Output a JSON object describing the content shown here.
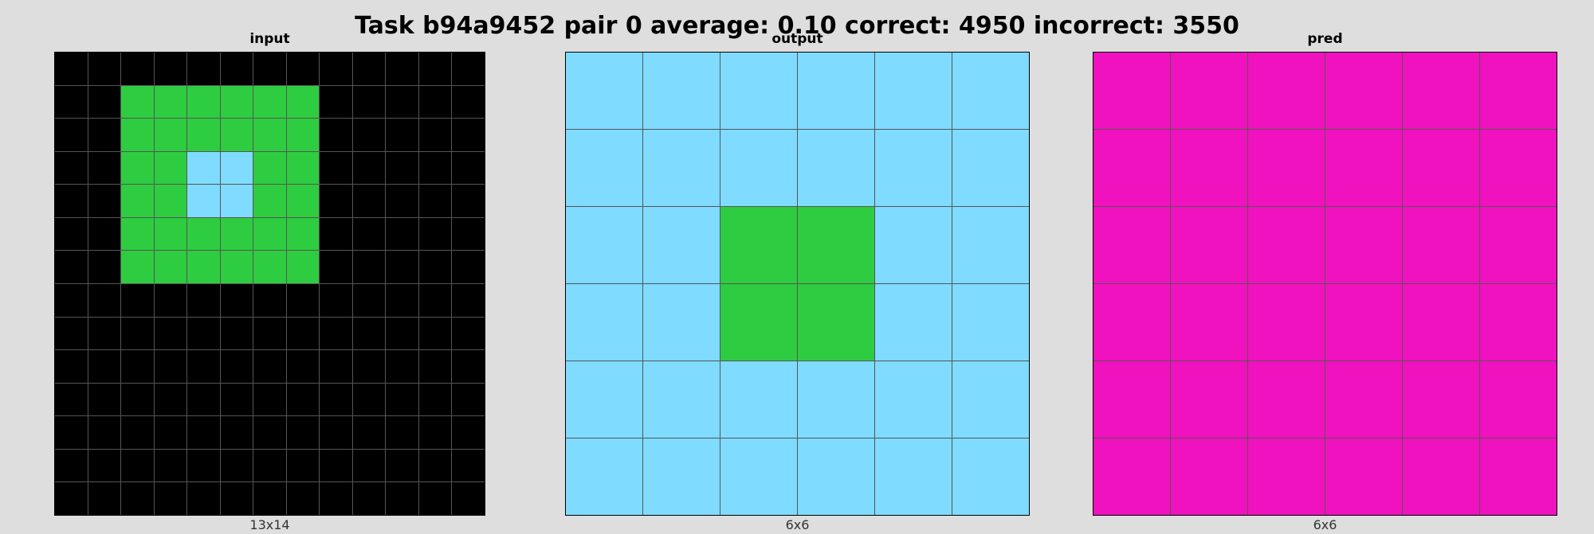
{
  "title": "Task b94a9452 pair 0 average: 0.10 correct: 4950 incorrect: 3550",
  "palette": {
    "0": "#000000",
    "1": "#1E93FF",
    "2": "#F93C31",
    "3": "#2ECC40",
    "4": "#FFDC00",
    "5": "#999999",
    "6": "#F012BE",
    "7": "#FF851B",
    "8": "#7FDBFF",
    "9": "#870C25"
  },
  "grid_line_color": "#555555",
  "panels": [
    {
      "label": "input",
      "dims": "13x14",
      "rows": 14,
      "cols": 13,
      "cells": [
        [
          0,
          0,
          0,
          0,
          0,
          0,
          0,
          0,
          0,
          0,
          0,
          0,
          0
        ],
        [
          0,
          0,
          3,
          3,
          3,
          3,
          3,
          3,
          0,
          0,
          0,
          0,
          0
        ],
        [
          0,
          0,
          3,
          3,
          3,
          3,
          3,
          3,
          0,
          0,
          0,
          0,
          0
        ],
        [
          0,
          0,
          3,
          3,
          8,
          8,
          3,
          3,
          0,
          0,
          0,
          0,
          0
        ],
        [
          0,
          0,
          3,
          3,
          8,
          8,
          3,
          3,
          0,
          0,
          0,
          0,
          0
        ],
        [
          0,
          0,
          3,
          3,
          3,
          3,
          3,
          3,
          0,
          0,
          0,
          0,
          0
        ],
        [
          0,
          0,
          3,
          3,
          3,
          3,
          3,
          3,
          0,
          0,
          0,
          0,
          0
        ],
        [
          0,
          0,
          0,
          0,
          0,
          0,
          0,
          0,
          0,
          0,
          0,
          0,
          0
        ],
        [
          0,
          0,
          0,
          0,
          0,
          0,
          0,
          0,
          0,
          0,
          0,
          0,
          0
        ],
        [
          0,
          0,
          0,
          0,
          0,
          0,
          0,
          0,
          0,
          0,
          0,
          0,
          0
        ],
        [
          0,
          0,
          0,
          0,
          0,
          0,
          0,
          0,
          0,
          0,
          0,
          0,
          0
        ],
        [
          0,
          0,
          0,
          0,
          0,
          0,
          0,
          0,
          0,
          0,
          0,
          0,
          0
        ],
        [
          0,
          0,
          0,
          0,
          0,
          0,
          0,
          0,
          0,
          0,
          0,
          0,
          0
        ],
        [
          0,
          0,
          0,
          0,
          0,
          0,
          0,
          0,
          0,
          0,
          0,
          0,
          0
        ]
      ]
    },
    {
      "label": "output",
      "dims": "6x6",
      "rows": 6,
      "cols": 6,
      "cells": [
        [
          8,
          8,
          8,
          8,
          8,
          8
        ],
        [
          8,
          8,
          8,
          8,
          8,
          8
        ],
        [
          8,
          8,
          3,
          3,
          8,
          8
        ],
        [
          8,
          8,
          3,
          3,
          8,
          8
        ],
        [
          8,
          8,
          8,
          8,
          8,
          8
        ],
        [
          8,
          8,
          8,
          8,
          8,
          8
        ]
      ]
    },
    {
      "label": "pred",
      "dims": "6x6",
      "rows": 6,
      "cols": 6,
      "cells": [
        [
          6,
          6,
          6,
          6,
          6,
          6
        ],
        [
          6,
          6,
          6,
          6,
          6,
          6
        ],
        [
          6,
          6,
          6,
          6,
          6,
          6
        ],
        [
          6,
          6,
          6,
          6,
          6,
          6
        ],
        [
          6,
          6,
          6,
          6,
          6,
          6
        ],
        [
          6,
          6,
          6,
          6,
          6,
          6
        ]
      ]
    }
  ]
}
